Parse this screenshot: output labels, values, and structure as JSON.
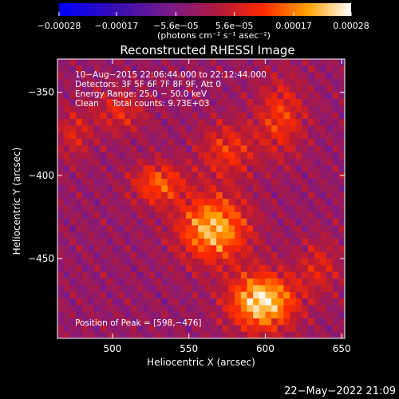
{
  "chart_data": {
    "type": "heatmap",
    "title": "Reconstructed RHESSI Image",
    "xlabel": "Heliocentric X (arcsec)",
    "ylabel": "Heliocentric Y (arcsec)",
    "xlim": [
      464,
      652
    ],
    "ylim": [
      -498,
      -330
    ],
    "x_ticks": [
      500,
      550,
      600,
      650
    ],
    "y_ticks": [
      -450,
      -400,
      -350
    ],
    "x_tick_labels": [
      "500",
      "550",
      "600",
      "650"
    ],
    "y_tick_labels": [
      "−450",
      "−400",
      "−350"
    ],
    "colorbar": {
      "min": -0.00028,
      "max": 0.00028,
      "ticks": [
        -0.00028,
        -0.00017,
        -5.6e-05,
        5.6e-05,
        0.00017,
        0.00028
      ],
      "tick_labels": [
        "−0.00028",
        "−0.00017",
        "−5.6e−05",
        "5.6e−05",
        "0.00017",
        "0.00028"
      ],
      "units": "(photons cm⁻² s⁻¹ asec⁻²)"
    },
    "info_lines": [
      "10−Aug−2015 22:06:44.000 to 22:12:44.000",
      "Detectors: 3F 5F 6F 7F 8F 9F, Att 0",
      "Energy Range: 25.0 − 50.0 keV",
      "Clean     Total counts: 9.73E+03"
    ],
    "peak_label": "Position of Peak = [598,−476]",
    "peak": [
      598,
      -476
    ],
    "sources": [
      {
        "x": 566,
        "y": -432,
        "amp": 0.00024,
        "sx": 16,
        "sy": 14
      },
      {
        "x": 598,
        "y": -476,
        "amp": 0.00028,
        "sx": 15,
        "sy": 12
      },
      {
        "x": 530,
        "y": -405,
        "amp": 0.00016,
        "sx": 12,
        "sy": 9
      },
      {
        "x": 610,
        "y": -365,
        "amp": 0.00013,
        "sx": 11,
        "sy": 16
      },
      {
        "x": 505,
        "y": -362,
        "amp": 0.0001,
        "sx": 12,
        "sy": 9
      },
      {
        "x": 575,
        "y": -385,
        "amp": 0.00012,
        "sx": 13,
        "sy": 12
      },
      {
        "x": 635,
        "y": -455,
        "amp": 9e-05,
        "sx": 10,
        "sy": 12
      },
      {
        "x": 475,
        "y": -375,
        "amp": 9e-05,
        "sx": 8,
        "sy": 11
      }
    ]
  },
  "footer": {
    "date": "22−May−2022 21:09"
  },
  "colors": {
    "background": "#000000",
    "text": "#ffffff"
  }
}
